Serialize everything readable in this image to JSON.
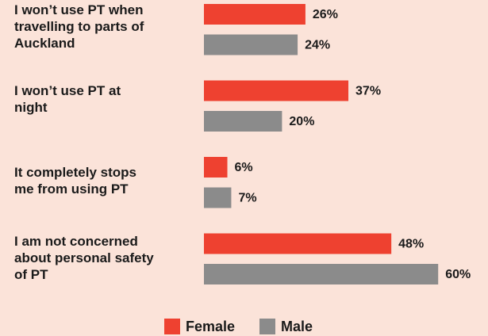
{
  "chart_data": {
    "type": "bar",
    "orientation": "horizontal",
    "categories": [
      "I won’t use PT when\ntravelling to parts of\nAuckland",
      "I won’t use PT at\nnight",
      "It completely stops\nme from using PT",
      "I am not concerned\nabout personal safety\nof PT"
    ],
    "series": [
      {
        "name": "Female",
        "color": "#ee4130",
        "values": [
          26,
          37,
          6,
          48
        ],
        "value_labels": [
          "26%",
          "37%",
          "6%",
          "48%"
        ]
      },
      {
        "name": "Male",
        "color": "#8b8b8b",
        "values": [
          24,
          20,
          7,
          60
        ],
        "value_labels": [
          "24%",
          "20%",
          "7%",
          "60%"
        ]
      }
    ]
  }
}
